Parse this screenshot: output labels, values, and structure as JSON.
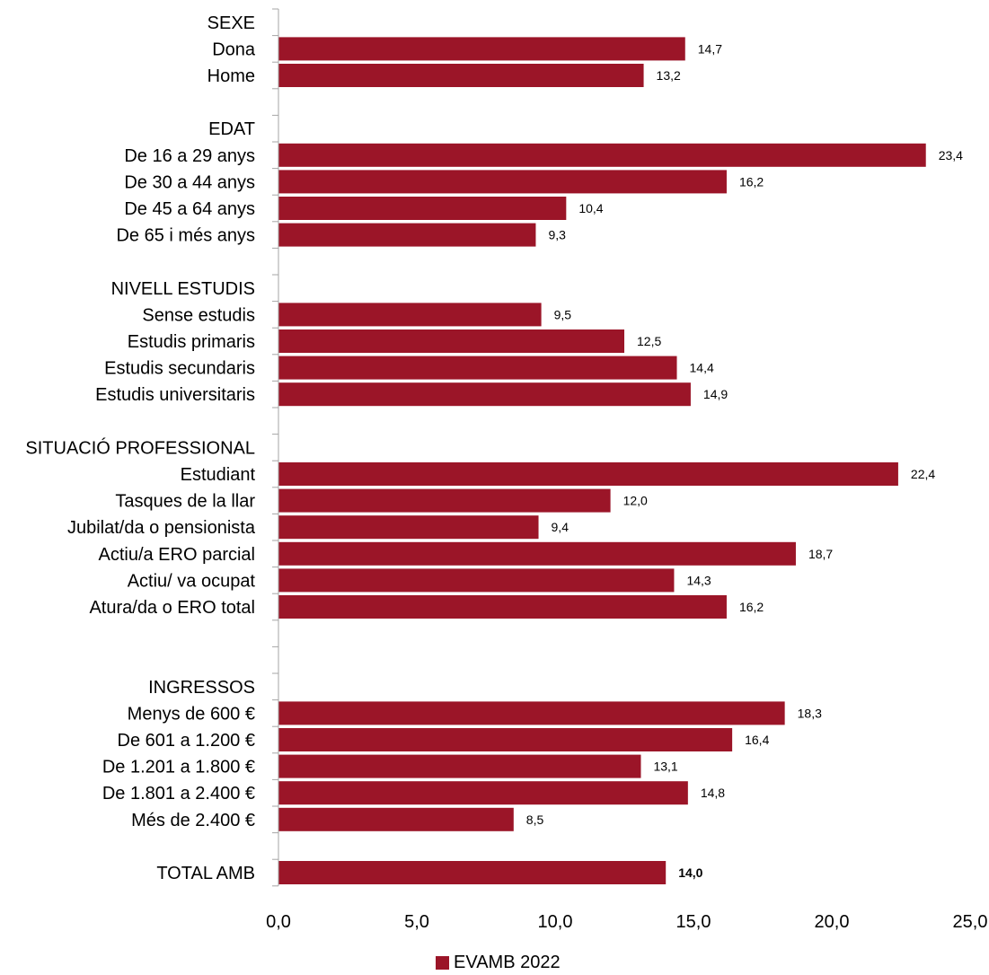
{
  "chart_data": {
    "type": "bar",
    "orientation": "horizontal",
    "xlim": [
      0,
      25
    ],
    "x_ticks": [
      "0,0",
      "5,0",
      "10,0",
      "15,0",
      "20,0",
      "25,0"
    ],
    "grid": false,
    "legend_position": "bottom",
    "series": [
      {
        "name": "EVAMB 2022",
        "color": "#9B1528"
      }
    ],
    "rows": [
      {
        "label": "SEXE"
      },
      {
        "label": "Dona",
        "value": 14.7,
        "value_label": "14,7"
      },
      {
        "label": "Home",
        "value": 13.2,
        "value_label": "13,2"
      },
      {
        "label": ""
      },
      {
        "label": "EDAT"
      },
      {
        "label": "De 16 a 29 anys",
        "value": 23.4,
        "value_label": "23,4"
      },
      {
        "label": "De 30 a 44 anys",
        "value": 16.2,
        "value_label": "16,2"
      },
      {
        "label": "De 45 a 64 anys",
        "value": 10.4,
        "value_label": "10,4"
      },
      {
        "label": "De 65 i més anys",
        "value": 9.3,
        "value_label": "9,3"
      },
      {
        "label": ""
      },
      {
        "label": "NIVELL ESTUDIS"
      },
      {
        "label": "Sense estudis",
        "value": 9.5,
        "value_label": "9,5"
      },
      {
        "label": "Estudis primaris",
        "value": 12.5,
        "value_label": "12,5"
      },
      {
        "label": "Estudis secundaris",
        "value": 14.4,
        "value_label": "14,4"
      },
      {
        "label": "Estudis universitaris",
        "value": 14.9,
        "value_label": "14,9"
      },
      {
        "label": ""
      },
      {
        "label": "SITUACIÓ PROFESSIONAL"
      },
      {
        "label": "Estudiant",
        "value": 22.4,
        "value_label": "22,4"
      },
      {
        "label": "Tasques de la llar",
        "value": 12.0,
        "value_label": "12,0"
      },
      {
        "label": "Jubilat/da o pensionista",
        "value": 9.4,
        "value_label": "9,4"
      },
      {
        "label": "Actiu/a ERO parcial",
        "value": 18.7,
        "value_label": "18,7"
      },
      {
        "label": "Actiu/ va ocupat",
        "value": 14.3,
        "value_label": "14,3"
      },
      {
        "label": "Atura/da o ERO total",
        "value": 16.2,
        "value_label": "16,2"
      },
      {
        "label": ""
      },
      {
        "label": ""
      },
      {
        "label": "INGRESSOS"
      },
      {
        "label": "Menys de  600 €",
        "value": 18.3,
        "value_label": "18,3"
      },
      {
        "label": "De 601 a 1.200 €",
        "value": 16.4,
        "value_label": "16,4"
      },
      {
        "label": "De 1.201 a 1.800 €",
        "value": 13.1,
        "value_label": "13,1"
      },
      {
        "label": "De 1.801 a 2.400 €",
        "value": 14.8,
        "value_label": "14,8"
      },
      {
        "label": "Més de 2.400 €",
        "value": 8.5,
        "value_label": "8,5"
      },
      {
        "label": ""
      },
      {
        "label": "TOTAL AMB",
        "value": 14.0,
        "value_label": "14,0",
        "bold": true
      }
    ]
  }
}
